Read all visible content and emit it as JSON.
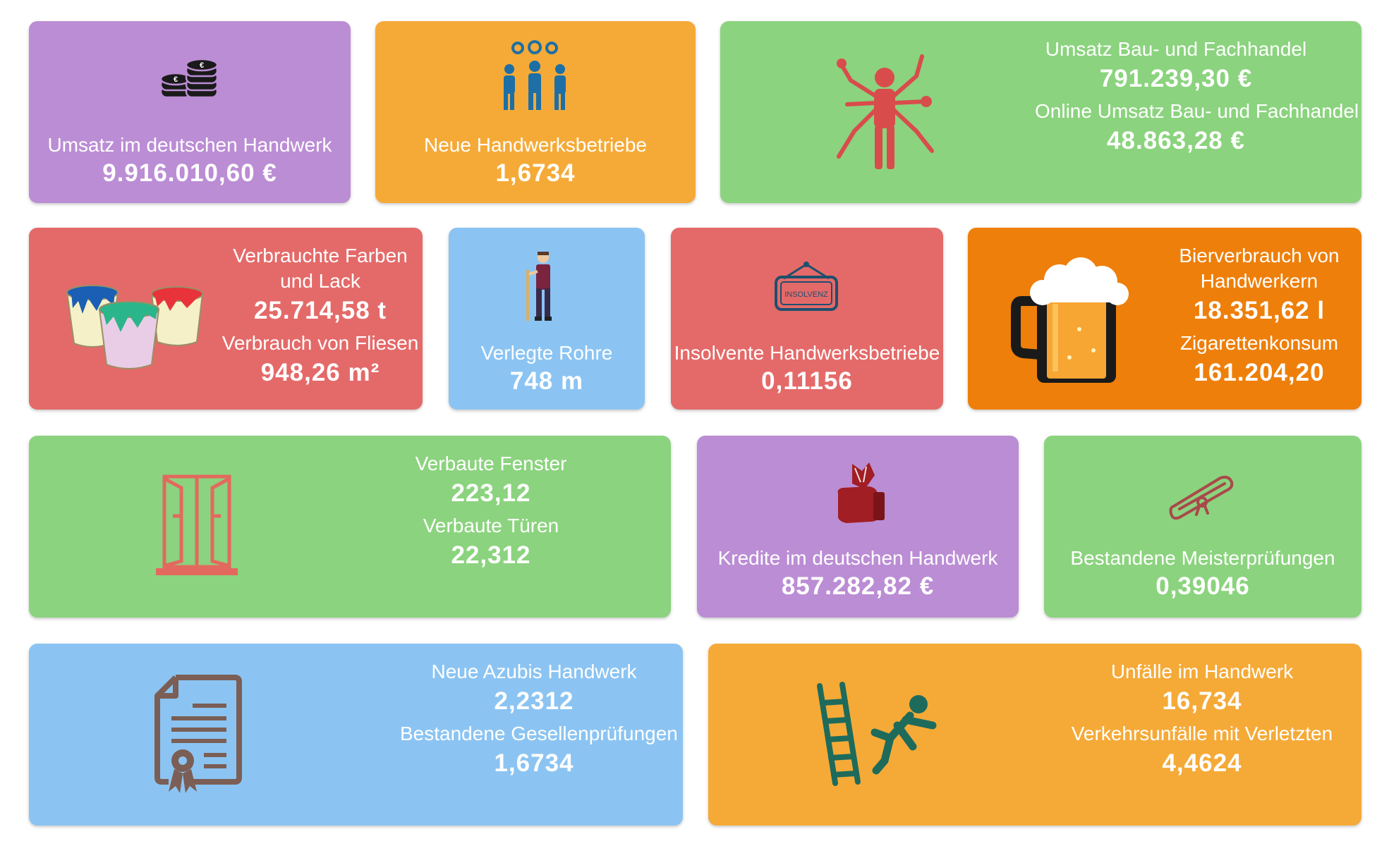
{
  "colors": {
    "purple": "#bb8dd4",
    "orange_light": "#f5aa37",
    "green": "#8bd37e",
    "red": "#e46a69",
    "blue": "#8bc4f2",
    "orange_dark": "#ee7f0a"
  },
  "cards": {
    "umsatz_handwerk": {
      "icon": "coins-icon",
      "label": "Umsatz im deutschen Handwerk",
      "value": "9.916.010,60 €"
    },
    "neue_betriebe": {
      "icon": "workers-gears-icon",
      "label": "Neue Handwerksbetriebe",
      "value": "1,6734"
    },
    "bau_fachhandel": {
      "icon": "multitool-worker-icon",
      "label1": "Umsatz Bau- und Fachhandel",
      "value1": "791.239,30 €",
      "label2": "Online Umsatz Bau- und Fachhandel",
      "value2": "48.863,28 €"
    },
    "farben": {
      "icon": "paint-buckets-icon",
      "label1a": "Verbrauchte Farben",
      "label1b": "und Lack",
      "value1": "25.714,58 t",
      "label2": "Verbrauch von Fliesen",
      "value2": "948,26 m²"
    },
    "rohre": {
      "icon": "plumber-icon",
      "label": "Verlegte Rohre",
      "value": "748 m"
    },
    "insolvenz": {
      "icon": "insolvenz-sign-icon",
      "sign_text": "INSOLVENZ",
      "label": "Insolvente Handwerksbetriebe",
      "value": "0,11156"
    },
    "bier": {
      "icon": "beer-mug-icon",
      "label1a": "Bierverbrauch von",
      "label1b": "Handwerkern",
      "value1": "18.351,62 l",
      "label2": "Zigarettenkonsum",
      "value2": "161.204,20"
    },
    "fenster": {
      "icon": "window-icon",
      "label1": "Verbaute Fenster",
      "value1": "223,12",
      "label2": "Verbaute Türen",
      "value2": "22,312"
    },
    "kredite": {
      "icon": "money-hand-icon",
      "label": "Kredite im deutschen Handwerk",
      "value": "857.282,82 €"
    },
    "meister": {
      "icon": "diploma-scroll-icon",
      "label": "Bestandene Meisterprüfungen",
      "value": "0,39046"
    },
    "azubis": {
      "icon": "certificate-icon",
      "label1": "Neue Azubis Handwerk",
      "value1": "2,2312",
      "label2": "Bestandene Gesellenprüfungen",
      "value2": "1,6734"
    },
    "unfaelle": {
      "icon": "ladder-fall-icon",
      "label1": "Unfälle im Handwerk",
      "value1": "16,734",
      "label2": "Verkehrsunfälle mit Verletzten",
      "value2": "4,4624"
    }
  }
}
